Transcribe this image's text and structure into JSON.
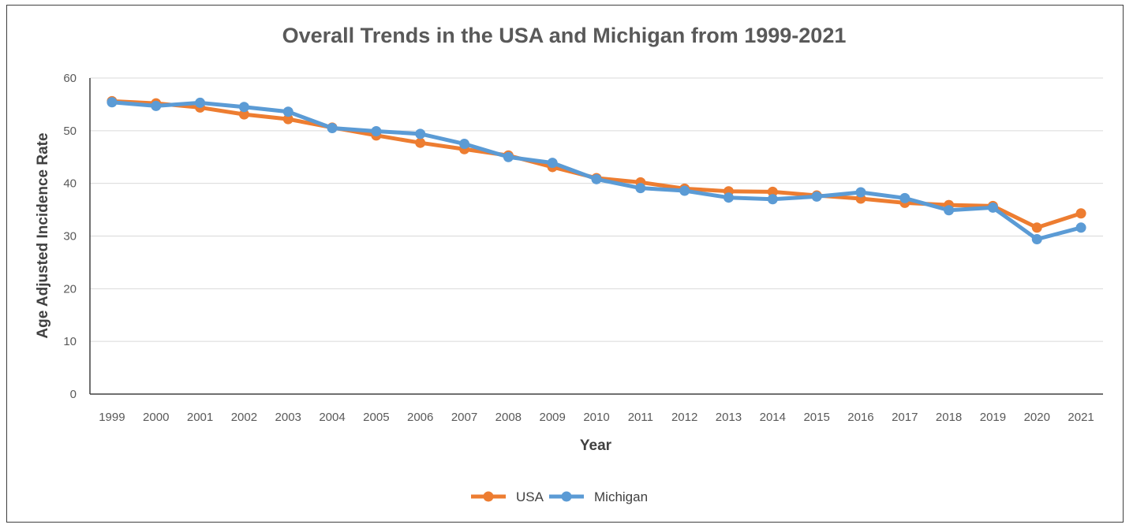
{
  "chart_data": {
    "type": "line",
    "title": "Overall Trends in the USA and Michigan from 1999-2021",
    "xlabel": "Year",
    "ylabel": "Age Adjusted Incidence Rate",
    "ylim": [
      0,
      60
    ],
    "yticks": [
      0,
      10,
      20,
      30,
      40,
      50,
      60
    ],
    "grid": true,
    "legend_position": "bottom",
    "categories": [
      "1999",
      "2000",
      "2001",
      "2002",
      "2003",
      "2004",
      "2005",
      "2006",
      "2007",
      "2008",
      "2009",
      "2010",
      "2011",
      "2012",
      "2013",
      "2014",
      "2015",
      "2016",
      "2017",
      "2018",
      "2019",
      "2020",
      "2021"
    ],
    "series": [
      {
        "name": "USA",
        "color": "#ED7D31",
        "values": [
          55.6,
          55.2,
          54.4,
          53.1,
          52.2,
          50.6,
          49.1,
          47.7,
          46.5,
          45.3,
          43.1,
          41.0,
          40.2,
          39.0,
          38.5,
          38.4,
          37.7,
          37.1,
          36.3,
          35.9,
          35.7,
          31.6,
          34.3
        ]
      },
      {
        "name": "Michigan",
        "color": "#5B9BD5",
        "values": [
          55.4,
          54.7,
          55.3,
          54.5,
          53.6,
          50.5,
          49.9,
          49.4,
          47.5,
          45.0,
          43.9,
          40.8,
          39.1,
          38.6,
          37.3,
          37.0,
          37.5,
          38.3,
          37.2,
          34.9,
          35.4,
          29.4,
          31.6
        ]
      }
    ]
  }
}
